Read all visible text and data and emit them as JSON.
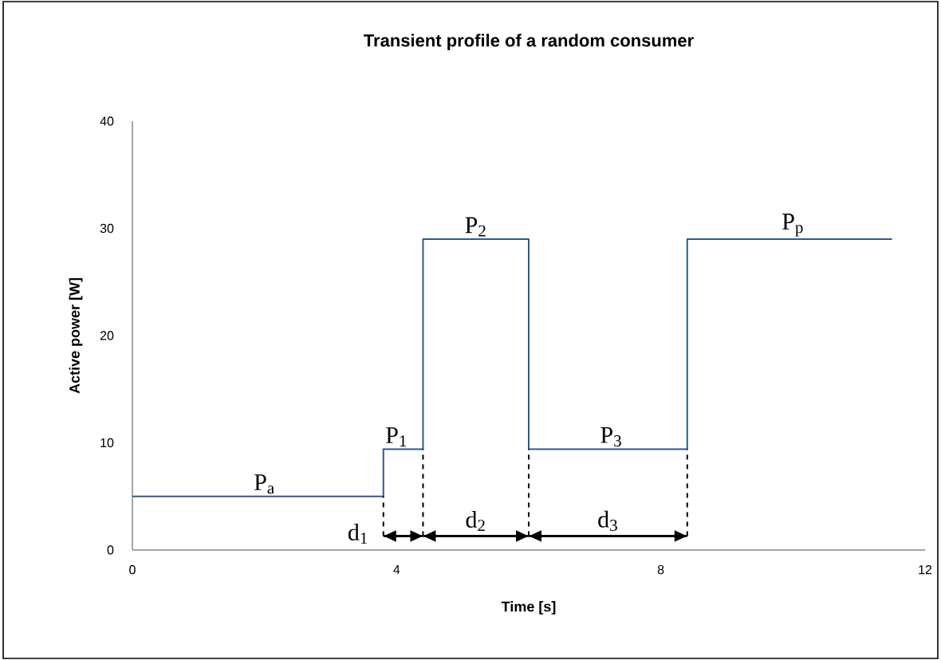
{
  "chart_data": {
    "type": "step",
    "title": "Transient profile of a random consumer",
    "xlabel": "Time [s]",
    "ylabel": "Active power [W]",
    "xlim": [
      0,
      12
    ],
    "xticks": [
      0,
      4,
      8,
      12
    ],
    "ylim": [
      0,
      40
    ],
    "yticks": [
      0,
      10,
      20,
      30,
      40
    ],
    "series": [
      {
        "x": [
          0,
          3.8,
          4.4,
          6.0,
          8.4,
          11.5
        ],
        "values": [
          5,
          9.4,
          29,
          9.4,
          29,
          29
        ],
        "color": "#2f5a8c"
      }
    ],
    "annotations": [
      {
        "text": "P$_{a}$",
        "x": 2.0,
        "y": 5
      },
      {
        "text": "P$_{1}$",
        "x": 4.0,
        "y": 9.4
      },
      {
        "text": "P$_{2}$",
        "x": 5.2,
        "y": 29
      },
      {
        "text": "P$_{3}$",
        "x": 7.25,
        "y": 9.4
      },
      {
        "text": "P$_{p}$",
        "x": 10.0,
        "y": 29
      },
      {
        "text": "d$_{1}$",
        "x": 3.8,
        "y": 5
      },
      "d$_{2}$",
      "d$_{3}$"
    ],
    "grid": false,
    "marker": "none",
    "line_style": "solid"
  }
}
